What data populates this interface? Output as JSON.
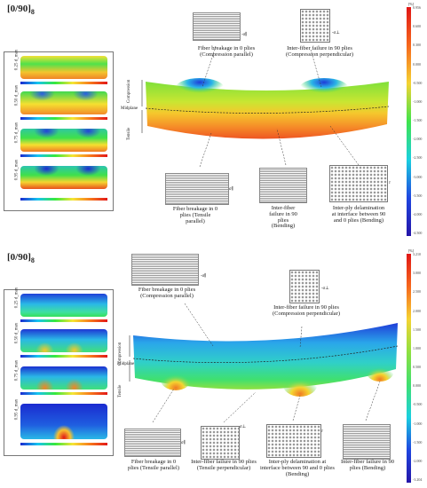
{
  "panel1": {
    "title_main": "[0/90]",
    "title_sub": "8",
    "thumb_labels": [
      "0.25 d_max",
      "0.50 d_max",
      "0.75 d_max",
      "0.95 d_max"
    ],
    "side_labels": {
      "compression": "Compression",
      "midplane": "Midplane",
      "tensile": "Tensile"
    },
    "colorbar": {
      "unit": "[%]",
      "ticks": [
        "0.956",
        "0.600",
        "0.300",
        "0.000",
        "-0.500",
        "-1.000",
        "-1.500",
        "-2.000",
        "-2.500",
        "-3.000",
        "-3.500",
        "-4.000",
        "-4.500"
      ]
    },
    "annotations": {
      "fb_comp": "Fiber breakage in 0 plies\n(Compression parallel)",
      "iff_comp": "Inter-fiber failure in 90 plies\n(Compression perpendicular)",
      "fb_tens": "Fiber breakage in 0\nplies (Tensile\nparallel)",
      "iff_bend": "Inter-fiber\nfailure in 90\nplies\n(Bending)",
      "delam": "Inter-ply delamination\nat interface between 90\nand 0 plies (Bending)"
    },
    "sigmas": {
      "par": "-σ∥",
      "perp": "-σ⊥",
      "par_tens": "σ∥",
      "tau": "τ"
    }
  },
  "panel2": {
    "title_main": "[0/90]",
    "title_sub": "8",
    "thumb_labels": [
      "0.25 d_max",
      "0.50 d_max",
      "0.75 d_max",
      "0.95 d_max"
    ],
    "side_labels": {
      "compression": "Compression",
      "midplane": "Midplane",
      "tensile": "Tensile"
    },
    "colorbar": {
      "unit": "[%]",
      "ticks": [
        "3.210",
        "3.000",
        "2.500",
        "2.000",
        "1.500",
        "1.000",
        "0.500",
        "0.000",
        "-0.500",
        "-1.000",
        "-1.500",
        "-2.000",
        "-3.204"
      ]
    },
    "annotations": {
      "fb_comp": "Fiber breakage in 0 plies\n(Compression parallel)",
      "iff_comp": "Inter-fiber failure in 90 plies\n(Compression perpendicular)",
      "fb_tens": "Fiber breakage in 0\nplies (Tensile parallel)",
      "iff_tens": "Inter-fiber failure in 90 plies\n(Tensile perpendicular)",
      "delam": "Inter-ply delamination at\ninterface between 90 and 0 plies\n(Bending)",
      "iff_bend": "Inter-fiber failure in 90\nplies (Bending)"
    },
    "sigmas": {
      "par": "-σ∥",
      "perp": "-σ⊥",
      "par_tens": "σ∥",
      "perp_tens": "σ⊥",
      "tau": "τ"
    }
  }
}
